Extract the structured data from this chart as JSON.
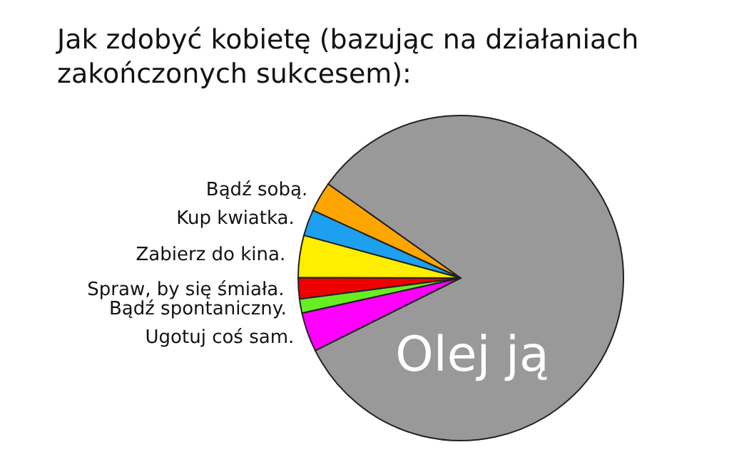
{
  "chart_data": {
    "type": "pie",
    "title": "Jak zdobyć kobietę (bazując na działaniach zakończonych sukcesem):",
    "categories": [
      "Bądź sobą.",
      "Kup kwiatka.",
      "Zabierz do kina.",
      "Spraw, by się śmiała.",
      "Bądź spontaniczny.",
      "Ugotuj coś sam.",
      "Olej ją"
    ],
    "values": [
      3.0,
      2.6,
      4.2,
      2.1,
      1.4,
      3.9,
      82.8
    ],
    "colors": [
      "#ffa500",
      "#1ea0f0",
      "#ffee00",
      "#ee0000",
      "#66ee22",
      "#ff00ff",
      "#999999"
    ]
  }
}
